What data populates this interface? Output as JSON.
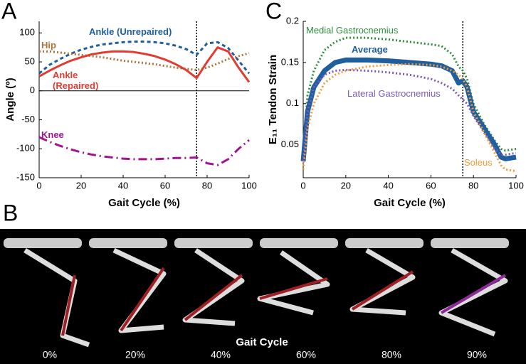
{
  "chart_data": [
    {
      "type": "line",
      "panel_label": "A",
      "xlabel": "Gait Cycle (%)",
      "ylabel": "Angle (º)",
      "x": [
        0,
        5,
        10,
        15,
        20,
        25,
        30,
        35,
        40,
        45,
        50,
        55,
        60,
        65,
        70,
        75,
        80,
        85,
        90,
        95,
        100
      ],
      "xlim": [
        0,
        100
      ],
      "xticks": [
        0,
        20,
        40,
        60,
        80,
        100
      ],
      "ylim": [
        -150,
        120
      ],
      "yticks": [
        100,
        50,
        0,
        -50,
        -100,
        -150
      ],
      "marker_x": 75,
      "series": [
        {
          "name": "Ankle (Unrepaired)",
          "color": "#1f5f9e",
          "style": "dashed",
          "values": [
            30,
            45,
            55,
            64,
            71,
            76,
            80,
            82,
            84,
            85,
            85,
            84,
            82,
            78,
            72,
            62,
            82,
            84,
            74,
            52,
            30
          ]
        },
        {
          "name": "Hip",
          "color": "#b0743a",
          "style": "dotted",
          "values": [
            68,
            68,
            66,
            64,
            62,
            60,
            58,
            55,
            52,
            50,
            48,
            46,
            43,
            40,
            38,
            36,
            40,
            47,
            55,
            60,
            65
          ]
        },
        {
          "name": "Ankle (Repaired)",
          "color": "#e03c31",
          "style": "solid",
          "values": [
            25,
            35,
            44,
            52,
            58,
            63,
            66,
            68,
            68,
            67,
            64,
            60,
            54,
            46,
            36,
            22,
            50,
            75,
            68,
            40,
            15
          ]
        },
        {
          "name": "Knee",
          "color": "#a0158f",
          "style": "dashdot",
          "values": [
            -80,
            -88,
            -95,
            -101,
            -106,
            -110,
            -113,
            -115,
            -117,
            -118,
            -118,
            -118,
            -117,
            -116,
            -116,
            -115,
            -125,
            -128,
            -118,
            -100,
            -85
          ]
        }
      ]
    },
    {
      "type": "line",
      "panel_label": "C",
      "xlabel": "Gait Cycle (%)",
      "ylabel": "E₁₁ Tendon Strain",
      "x": [
        0,
        2,
        5,
        10,
        15,
        20,
        30,
        40,
        50,
        60,
        65,
        70,
        73,
        75,
        77,
        80,
        85,
        90,
        93,
        95,
        100
      ],
      "xlim": [
        0,
        100
      ],
      "xticks": [
        0,
        20,
        40,
        60,
        80,
        100
      ],
      "ylim": [
        0.01,
        0.2
      ],
      "yticks": [
        0.05,
        0.1,
        0.15,
        0.2
      ],
      "marker_x": 75,
      "series": [
        {
          "name": "Medial Gastrocnemius",
          "color": "#2e8b3e",
          "style": "dotted",
          "values": [
            0.04,
            0.11,
            0.14,
            0.165,
            0.175,
            0.18,
            0.18,
            0.178,
            0.175,
            0.172,
            0.17,
            0.16,
            0.145,
            0.14,
            0.13,
            0.1,
            0.075,
            0.055,
            0.045,
            0.043,
            0.045
          ]
        },
        {
          "name": "Average",
          "color": "#1f5f9e",
          "style": "thick",
          "values": [
            0.03,
            0.09,
            0.12,
            0.14,
            0.15,
            0.153,
            0.153,
            0.152,
            0.15,
            0.148,
            0.146,
            0.14,
            0.125,
            0.128,
            0.12,
            0.09,
            0.07,
            0.05,
            0.035,
            0.033,
            0.035
          ]
        },
        {
          "name": "Lateral Gastrocnemius",
          "color": "#7e57c2",
          "style": "dotted",
          "values": [
            0.03,
            0.09,
            0.12,
            0.135,
            0.14,
            0.141,
            0.14,
            0.138,
            0.135,
            0.13,
            0.125,
            0.118,
            0.11,
            0.105,
            0.1,
            0.085,
            0.065,
            0.045,
            0.038,
            0.038,
            0.04
          ]
        },
        {
          "name": "Soleus",
          "color": "#f39c34",
          "style": "dotted",
          "values": [
            0.02,
            0.07,
            0.1,
            0.125,
            0.135,
            0.14,
            0.145,
            0.147,
            0.148,
            0.147,
            0.145,
            0.14,
            0.135,
            0.13,
            0.12,
            0.09,
            0.065,
            0.04,
            0.025,
            0.02,
            0.018
          ]
        }
      ]
    }
  ],
  "panel_b": {
    "label": "B",
    "title": "Gait Cycle",
    "frames": [
      "0%",
      "20%",
      "40%",
      "60%",
      "80%",
      "90%"
    ]
  }
}
